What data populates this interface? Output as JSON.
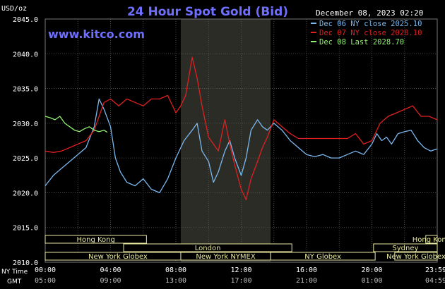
{
  "header": {
    "title": "24 Hour Spot Gold (Bid)",
    "date": "December 08, 2023 02:20",
    "units": "USD/oz",
    "brand": "www.kitco.com"
  },
  "labels": {
    "ny_time": "NY Time",
    "gmt": "GMT"
  },
  "colors": {
    "background": "#000000",
    "grid": "#5a5a5a",
    "title": "#6f6fff",
    "dec06": "#7ab8f0",
    "dec07": "#e02020",
    "dec08": "#90f070",
    "session_box": "#e8e8a0"
  },
  "legend": [
    {
      "label": "Dec 06 NY close 2025.10",
      "color": "#7ab8f0"
    },
    {
      "label": "Dec 07 NY close 2028.10",
      "color": "#e02020"
    },
    {
      "label": "Dec 08 Last 2028.70",
      "color": "#90f070"
    }
  ],
  "sessions": [
    {
      "label": "Hong Kong",
      "start": 0,
      "end": 6.2
    },
    {
      "label": "London",
      "start": 4.8,
      "end": 15.1
    },
    {
      "label": "New York Globex",
      "start": 0,
      "end": 8.9
    },
    {
      "label": "New York NYMEX",
      "start": 8.3,
      "end": 13.8
    },
    {
      "label": "NY Globex",
      "start": 13.8,
      "end": 20.2
    },
    {
      "label": "Sydney",
      "start": 20.1,
      "end": 24
    },
    {
      "label": "Hong Kong",
      "start": 23.3,
      "end": 24
    },
    {
      "label": "New York Globex",
      "start": 21.4,
      "end": 24
    }
  ],
  "chart_data": {
    "type": "line",
    "title": "24 Hour Spot Gold (Bid)",
    "ylabel": "USD/oz",
    "ylim": [
      2010,
      2045
    ],
    "xlim": [
      0,
      24
    ],
    "y_ticks": [
      "2010.0",
      "2015.0",
      "2020.0",
      "2025.0",
      "2030.0",
      "2035.0",
      "2040.0",
      "2045.0"
    ],
    "x_ticks_ny": [
      "00:00",
      "04:00",
      "08:00",
      "12:00",
      "16:00",
      "20:00",
      "23:59"
    ],
    "x_ticks_gmt": [
      "05:00",
      "09:00",
      "13:00",
      "17:00",
      "21:00",
      "01:00",
      "04:59"
    ],
    "shaded_range": [
      8.3,
      13.8
    ],
    "grid": true,
    "series": [
      {
        "name": "Dec 06 NY close 2025.10",
        "x": [
          0,
          0.5,
          1,
          1.5,
          2,
          2.5,
          3,
          3.3,
          3.6,
          4,
          4.3,
          4.6,
          5,
          5.5,
          6,
          6.5,
          7,
          7.5,
          8,
          8.5,
          9,
          9.3,
          9.6,
          10,
          10.3,
          10.6,
          11,
          11.3,
          11.6,
          12,
          12.3,
          12.6,
          13,
          13.3,
          13.6,
          14,
          14.5,
          15,
          15.5,
          16,
          16.5,
          17,
          17.5,
          18,
          18.5,
          19,
          19.5,
          20,
          20.3,
          20.6,
          20.9,
          21.2,
          21.6,
          22,
          22.4,
          22.8,
          23.2,
          23.6,
          23.99
        ],
        "values": [
          2021.0,
          2022.5,
          2023.5,
          2024.5,
          2025.5,
          2026.5,
          2029.5,
          2033.5,
          2032.0,
          2029.5,
          2025.0,
          2023.0,
          2021.5,
          2021.0,
          2022.0,
          2020.5,
          2020.0,
          2022.0,
          2025.0,
          2027.5,
          2029.0,
          2030.0,
          2026.0,
          2024.5,
          2021.5,
          2023.0,
          2026.0,
          2027.5,
          2025.0,
          2022.5,
          2025.0,
          2029.0,
          2030.5,
          2029.5,
          2029.0,
          2030.0,
          2029.0,
          2027.5,
          2026.5,
          2025.5,
          2025.2,
          2025.5,
          2025.0,
          2025.0,
          2025.5,
          2026.0,
          2025.5,
          2027.0,
          2028.5,
          2027.5,
          2028.0,
          2027.0,
          2028.5,
          2028.8,
          2029.0,
          2027.5,
          2026.5,
          2026.0,
          2026.3
        ]
      },
      {
        "name": "Dec 07 NY close 2028.10",
        "x": [
          0,
          0.5,
          1,
          1.5,
          2,
          2.5,
          3,
          3.3,
          3.6,
          4,
          4.5,
          5,
          5.5,
          6,
          6.5,
          7,
          7.5,
          8,
          8.3,
          8.6,
          9,
          9.3,
          9.6,
          10,
          10.3,
          10.6,
          11,
          11.3,
          11.6,
          12,
          12.3,
          12.6,
          13,
          13.3,
          13.6,
          14,
          14.5,
          15,
          15.5,
          16,
          16.5,
          17,
          17.5,
          18,
          18.5,
          19,
          19.5,
          20,
          20.5,
          21,
          21.5,
          22,
          22.5,
          23,
          23.5,
          23.99
        ],
        "values": [
          2026.0,
          2025.8,
          2026.0,
          2026.5,
          2027.0,
          2027.5,
          2029.0,
          2031.0,
          2033.0,
          2033.5,
          2032.5,
          2033.5,
          2033.0,
          2032.5,
          2033.5,
          2033.5,
          2034.0,
          2031.5,
          2032.5,
          2034.0,
          2039.5,
          2036.5,
          2032.5,
          2028.0,
          2027.0,
          2026.0,
          2030.5,
          2027.0,
          2024.0,
          2020.5,
          2019.0,
          2022.0,
          2024.5,
          2026.5,
          2028.0,
          2030.5,
          2029.5,
          2028.5,
          2027.8,
          2027.8,
          2027.8,
          2027.8,
          2027.8,
          2027.8,
          2027.8,
          2028.5,
          2027.0,
          2027.5,
          2030.0,
          2031.0,
          2031.5,
          2032.0,
          2032.5,
          2031.0,
          2031.0,
          2030.5
        ]
      },
      {
        "name": "Dec 08 Last 2028.70",
        "x": [
          0,
          0.3,
          0.6,
          0.9,
          1.2,
          1.5,
          1.8,
          2.1,
          2.4,
          2.7,
          3.0,
          3.3,
          3.6,
          3.8
        ],
        "values": [
          2031.0,
          2030.8,
          2030.5,
          2031.0,
          2030.0,
          2029.5,
          2029.0,
          2028.8,
          2029.2,
          2029.5,
          2029.0,
          2028.8,
          2029.0,
          2028.7
        ]
      }
    ]
  }
}
